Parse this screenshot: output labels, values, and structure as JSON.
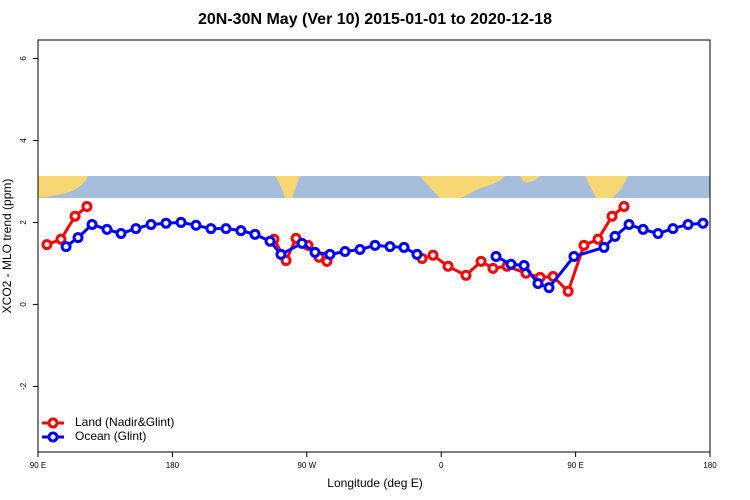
{
  "chart_data": {
    "type": "line",
    "title": "20N-30N May (Ver 10)   2015-01-01 to 2020-12-18",
    "x_label": "Longitude (deg E)",
    "y_label": "XCO2 - MLO trend (ppm)",
    "xlim": [
      90,
      540
    ],
    "xticks": [
      {
        "value": 90,
        "label": "90 E"
      },
      {
        "value": 180,
        "label": "180"
      },
      {
        "value": 270,
        "label": "90 W"
      },
      {
        "value": 360,
        "label": "0"
      },
      {
        "value": 450,
        "label": "90 E"
      },
      {
        "value": 540,
        "label": "180"
      }
    ],
    "ylim": [
      -3.6,
      6.45
    ],
    "yticks": [
      -2,
      0,
      2,
      4,
      6
    ],
    "legend": "bottom-left",
    "series": [
      {
        "name": "Land (Nadir&Glint)",
        "color": "#ff0000",
        "x": [
          96.0,
          105.4,
          114.8,
          122.8,
          null,
          248.0,
          256.1,
          262.8,
          270.8,
          278.2,
          283.5,
          null,
          347.2,
          354.5,
          364.6,
          376.6,
          386.7,
          394.7,
          404.1,
          416.8,
          426.2,
          434.9,
          445.0,
          455.6,
          465.0,
          474.4,
          482.4
        ],
        "values": [
          1.46,
          1.59,
          2.15,
          2.39,
          null,
          1.59,
          1.07,
          1.61,
          1.44,
          1.15,
          1.05,
          null,
          1.12,
          1.2,
          0.93,
          0.71,
          1.05,
          0.88,
          0.93,
          0.76,
          0.66,
          0.68,
          0.32,
          1.44,
          1.59,
          2.15,
          2.39
        ]
      },
      {
        "name": "Ocean (Glint)",
        "color": "#0000ff",
        "x": [
          108.8,
          116.8,
          126.2,
          136.2,
          145.6,
          155.6,
          165.7,
          175.7,
          185.8,
          195.8,
          205.8,
          215.9,
          225.9,
          235.3,
          245.4,
          252.7,
          266.8,
          275.5,
          285.5,
          295.6,
          305.6,
          315.7,
          325.7,
          335.1,
          343.8,
          null,
          396.7,
          406.7,
          415.5,
          424.8,
          432.2,
          448.9,
          469.0,
          476.4,
          485.8,
          495.2,
          505.2,
          515.2,
          525.3,
          535.3
        ],
        "values": [
          1.41,
          1.63,
          1.95,
          1.83,
          1.73,
          1.85,
          1.95,
          1.98,
          2.0,
          1.93,
          1.85,
          1.85,
          1.8,
          1.71,
          1.54,
          1.22,
          1.49,
          1.27,
          1.22,
          1.29,
          1.34,
          1.44,
          1.41,
          1.39,
          1.22,
          null,
          1.17,
          0.98,
          0.95,
          0.51,
          0.41,
          1.17,
          1.39,
          1.66,
          1.95,
          1.83,
          1.73,
          1.85,
          1.95,
          1.98
        ]
      }
    ]
  }
}
